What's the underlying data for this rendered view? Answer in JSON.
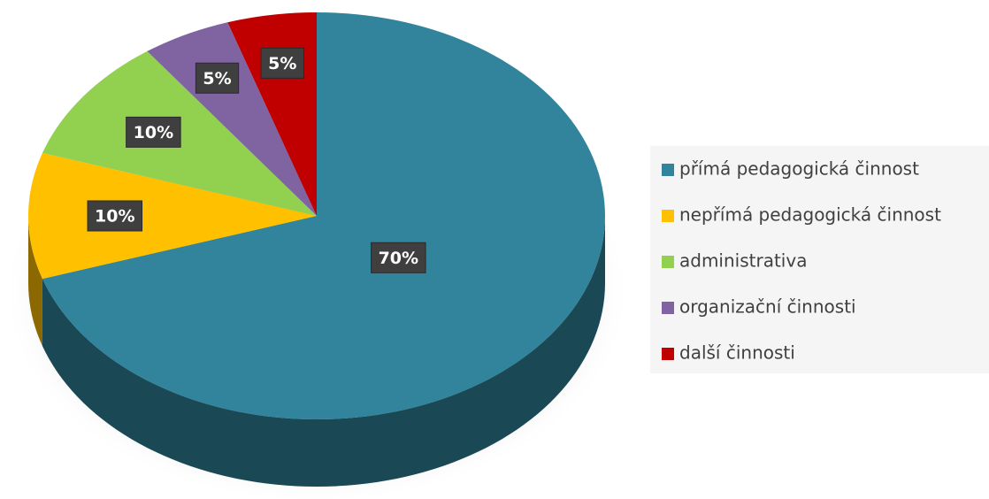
{
  "chart_data": {
    "type": "pie",
    "categories": [
      "přímá pedagogická činnost",
      "nepřímá pedagogická činnost",
      "administrativa",
      "organizační činnosti",
      "další činnosti"
    ],
    "values": [
      70,
      10,
      10,
      5,
      5
    ],
    "value_labels": [
      "70%",
      "10%",
      "10%",
      "5%",
      "5%"
    ],
    "colors": [
      "#31849b",
      "#ffc000",
      "#92d050",
      "#8064a2",
      "#c00000"
    ],
    "legend": "right"
  }
}
